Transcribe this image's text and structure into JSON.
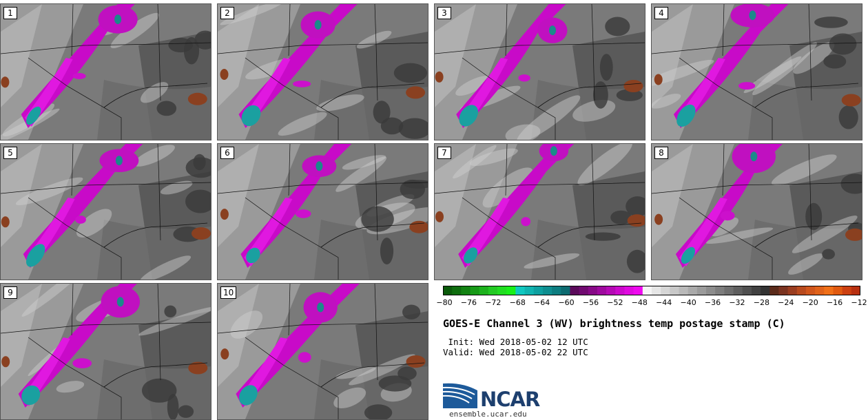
{
  "title": "GOES-E Channel 3 (WV) brightness temp postage stamp (C)",
  "init_line": " Init: Wed 2018-05-02 12 UTC",
  "valid_line": "Valid: Wed 2018-05-02 22 UTC",
  "logo_text": "NCAR",
  "logo_url": "ensemble.ucar.edu",
  "panels": [
    "1",
    "2",
    "3",
    "4",
    "5",
    "6",
    "7",
    "8",
    "9",
    "10"
  ],
  "colorbar": {
    "ticks": [
      "−80",
      "−76",
      "−72",
      "−68",
      "−64",
      "−60",
      "−56",
      "−52",
      "−48",
      "−44",
      "−40",
      "−36",
      "−32",
      "−28",
      "−24",
      "−20",
      "−16",
      "−12"
    ],
    "colors": [
      "#0a5a0a",
      "#0e6d0e",
      "#128212",
      "#179917",
      "#1db11d",
      "#23c923",
      "#21dd21",
      "#19f019",
      "#10c8c0",
      "#10b4b0",
      "#0ea0a0",
      "#0e8e90",
      "#0d7d80",
      "#0d6b70",
      "#5a0a5a",
      "#700a70",
      "#870a87",
      "#9e0a9e",
      "#b50ab5",
      "#cc0acc",
      "#e00ae0",
      "#f00af0",
      "#f5f5f5",
      "#e6e6e6",
      "#d6d6d6",
      "#c8c8c8",
      "#b9b9b9",
      "#aaaaaa",
      "#9b9b9b",
      "#8c8c8c",
      "#7d7d7d",
      "#6e6e6e",
      "#5f5f5f",
      "#505050",
      "#414141",
      "#333333",
      "#5a2a1a",
      "#7a3320",
      "#9a3d20",
      "#b84a1e",
      "#d0561c",
      "#e0621a",
      "#f07018",
      "#e05a10",
      "#cc4010",
      "#b83010"
    ]
  }
}
